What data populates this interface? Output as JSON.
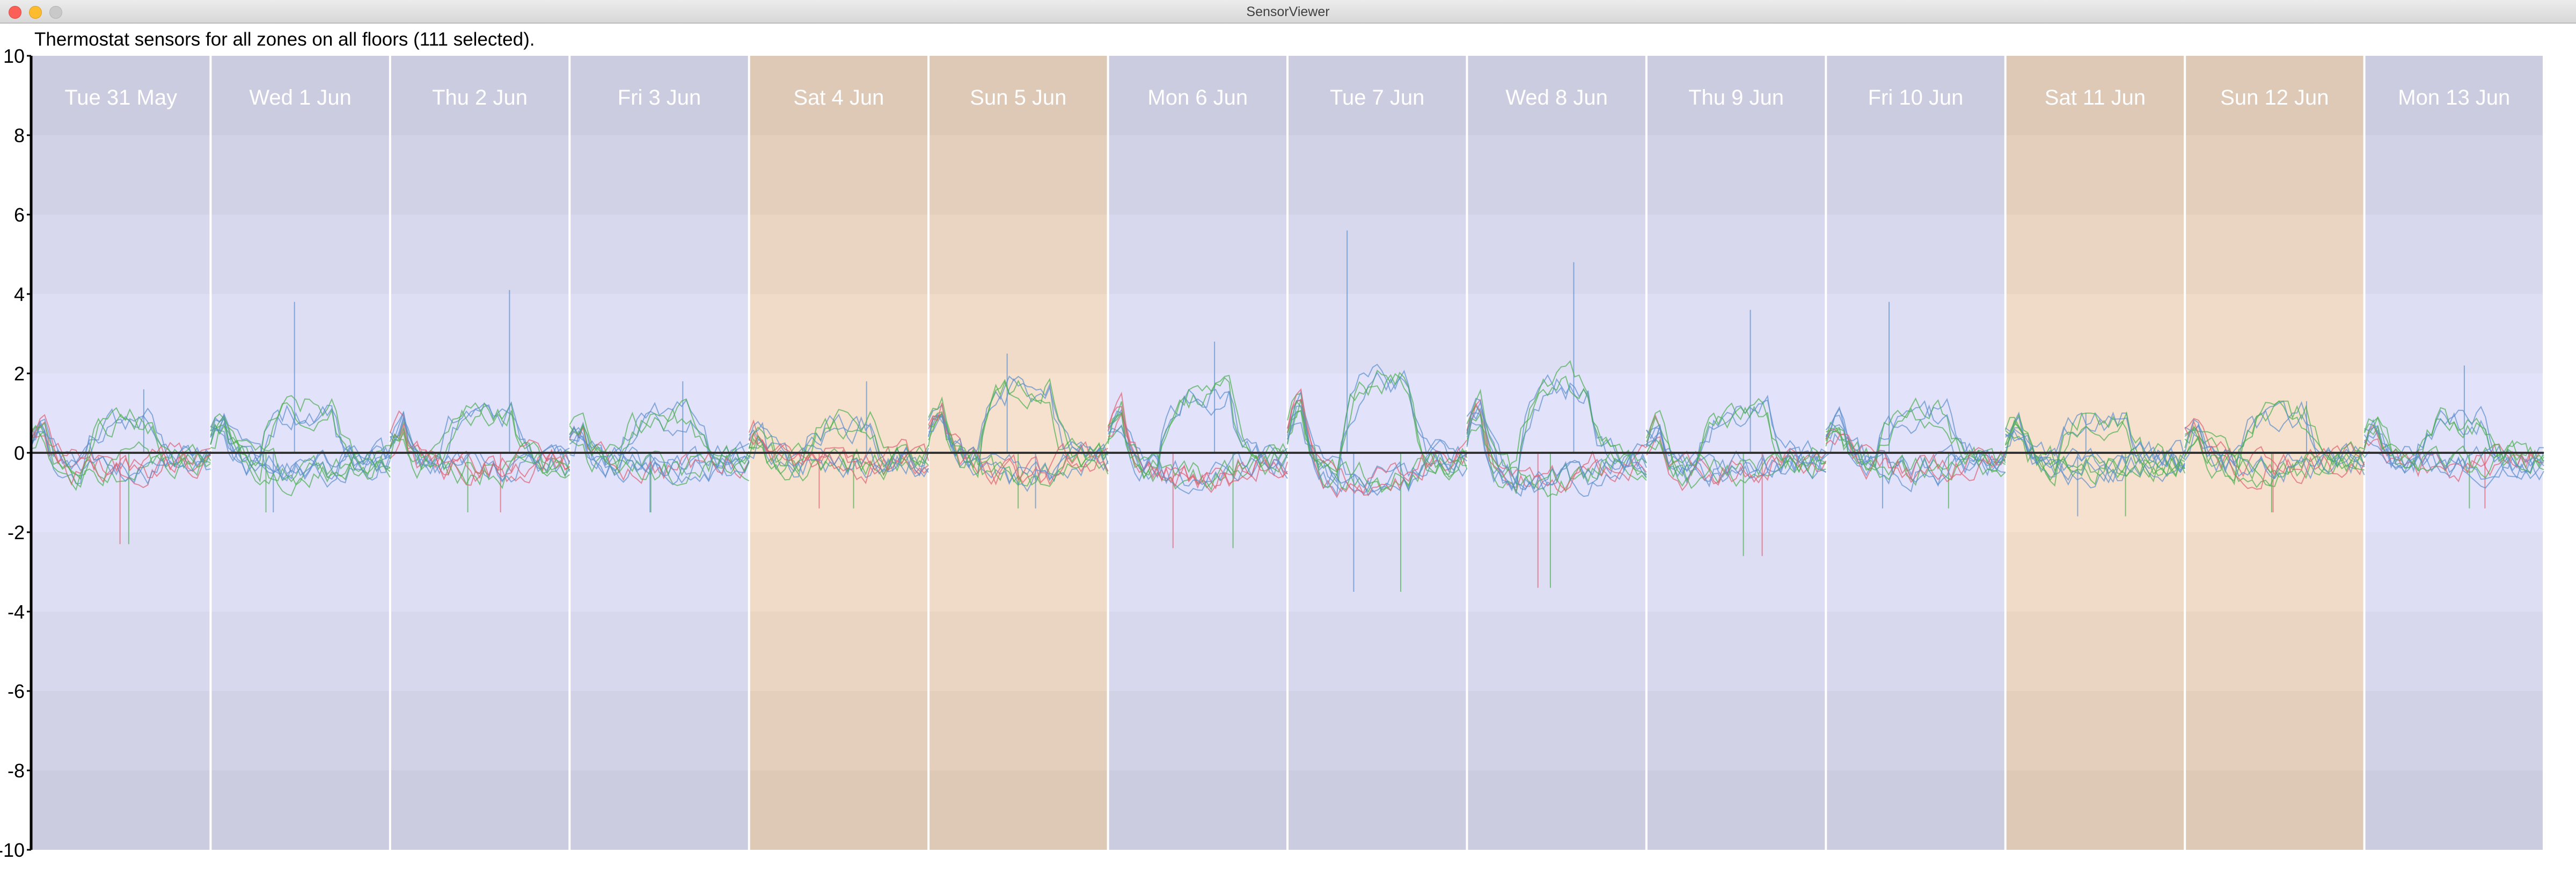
{
  "window": {
    "title": "SensorViewer"
  },
  "caption": "Thermostat sensors for all zones on all floors (111 selected).",
  "colors": {
    "weekday_dark": "#cccce0",
    "weekday_light": "#e2e2fa",
    "weekend_dark": "#dec8b6",
    "weekend_light": "#f6e0ce",
    "blue_series": "#5b8fcc",
    "green_series": "#4caf50",
    "red_series": "#e06070",
    "axis": "#000000",
    "day_label": "#ffffff"
  },
  "chart_data": {
    "type": "line",
    "ylim": [
      -10,
      10
    ],
    "yticks": [
      10,
      8,
      6,
      4,
      2,
      0,
      -2,
      -4,
      -6,
      -8,
      -10
    ],
    "days": [
      {
        "label": "Tue 31 May",
        "weekend": false
      },
      {
        "label": "Wed 1 Jun",
        "weekend": false
      },
      {
        "label": "Thu 2 Jun",
        "weekend": false
      },
      {
        "label": "Fri 3 Jun",
        "weekend": false
      },
      {
        "label": "Sat 4 Jun",
        "weekend": true
      },
      {
        "label": "Sun 5 Jun",
        "weekend": true
      },
      {
        "label": "Mon 6 Jun",
        "weekend": false
      },
      {
        "label": "Tue 7 Jun",
        "weekend": false
      },
      {
        "label": "Wed 8 Jun",
        "weekend": false
      },
      {
        "label": "Thu 9 Jun",
        "weekend": false
      },
      {
        "label": "Fri 10 Jun",
        "weekend": false
      },
      {
        "label": "Sat 11 Jun",
        "weekend": true
      },
      {
        "label": "Sun 12 Jun",
        "weekend": true
      },
      {
        "label": "Mon 13 Jun",
        "weekend": false
      }
    ],
    "series_count": 111,
    "envelopes": [
      {
        "day": "Tue 31 May",
        "ymin": -2.3,
        "ymax": 1.6,
        "typical": 0.8
      },
      {
        "day": "Wed 1 Jun",
        "ymin": -1.5,
        "ymax": 3.8,
        "typical": 1.1
      },
      {
        "day": "Thu 2 Jun",
        "ymin": -1.5,
        "ymax": 4.1,
        "typical": 1.0
      },
      {
        "day": "Fri 3 Jun",
        "ymin": -1.5,
        "ymax": 1.8,
        "typical": 0.9
      },
      {
        "day": "Sat 4 Jun",
        "ymin": -1.4,
        "ymax": 1.8,
        "typical": 0.7
      },
      {
        "day": "Sun 5 Jun",
        "ymin": -1.4,
        "ymax": 2.5,
        "typical": 1.6
      },
      {
        "day": "Mon 6 Jun",
        "ymin": -2.4,
        "ymax": 2.8,
        "typical": 1.5
      },
      {
        "day": "Tue 7 Jun",
        "ymin": -3.5,
        "ymax": 5.6,
        "typical": 1.8
      },
      {
        "day": "Wed 8 Jun",
        "ymin": -3.4,
        "ymax": 4.8,
        "typical": 1.7
      },
      {
        "day": "Thu 9 Jun",
        "ymin": -2.6,
        "ymax": 3.6,
        "typical": 1.0
      },
      {
        "day": "Fri 10 Jun",
        "ymin": -1.4,
        "ymax": 3.8,
        "typical": 1.0
      },
      {
        "day": "Sat 11 Jun",
        "ymin": -1.6,
        "ymax": 1.0,
        "typical": 0.9
      },
      {
        "day": "Sun 12 Jun",
        "ymin": -1.5,
        "ymax": 1.3,
        "typical": 0.9
      },
      {
        "day": "Mon 13 Jun",
        "ymin": -1.4,
        "ymax": 2.2,
        "typical": 0.8
      }
    ]
  }
}
